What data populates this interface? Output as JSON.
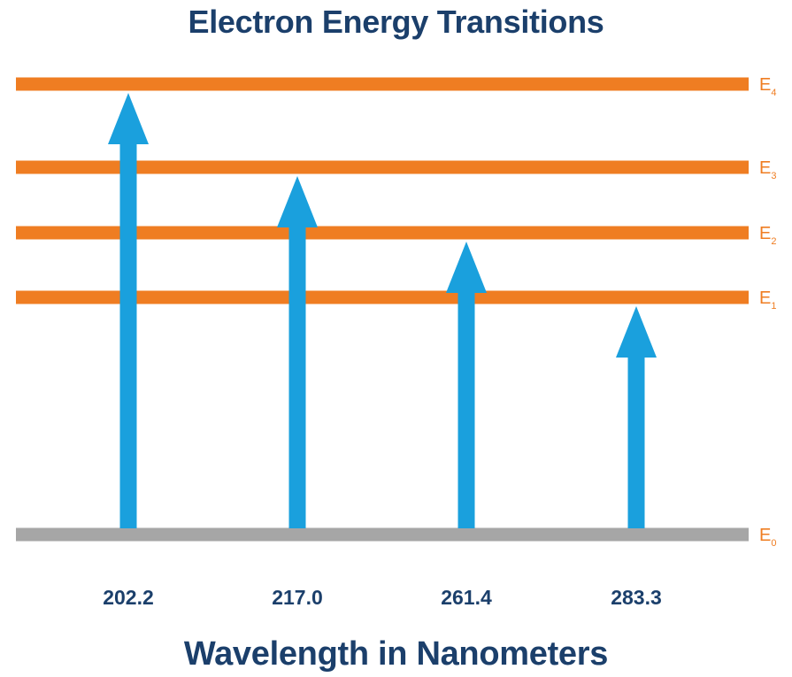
{
  "title": "Electron Energy Transitions",
  "xlabel": "Wavelength in Nanometers",
  "colors": {
    "level": "#ef7d22",
    "ground": "#a6a6a6",
    "arrow": "#1aa0dd",
    "text": "#1b3f6b"
  },
  "levels": [
    {
      "id": "E0",
      "base": "E",
      "sub": "0",
      "kind": "ground"
    },
    {
      "id": "E1",
      "base": "E",
      "sub": "1",
      "kind": "excited"
    },
    {
      "id": "E2",
      "base": "E",
      "sub": "2",
      "kind": "excited"
    },
    {
      "id": "E3",
      "base": "E",
      "sub": "3",
      "kind": "excited"
    },
    {
      "id": "E4",
      "base": "E",
      "sub": "4",
      "kind": "excited"
    }
  ],
  "transitions": [
    {
      "wavelength": "202.2",
      "from": "E0",
      "to": "E4"
    },
    {
      "wavelength": "217.0",
      "from": "E0",
      "to": "E3"
    },
    {
      "wavelength": "261.4",
      "from": "E0",
      "to": "E2"
    },
    {
      "wavelength": "283.3",
      "from": "E0",
      "to": "E1"
    }
  ]
}
